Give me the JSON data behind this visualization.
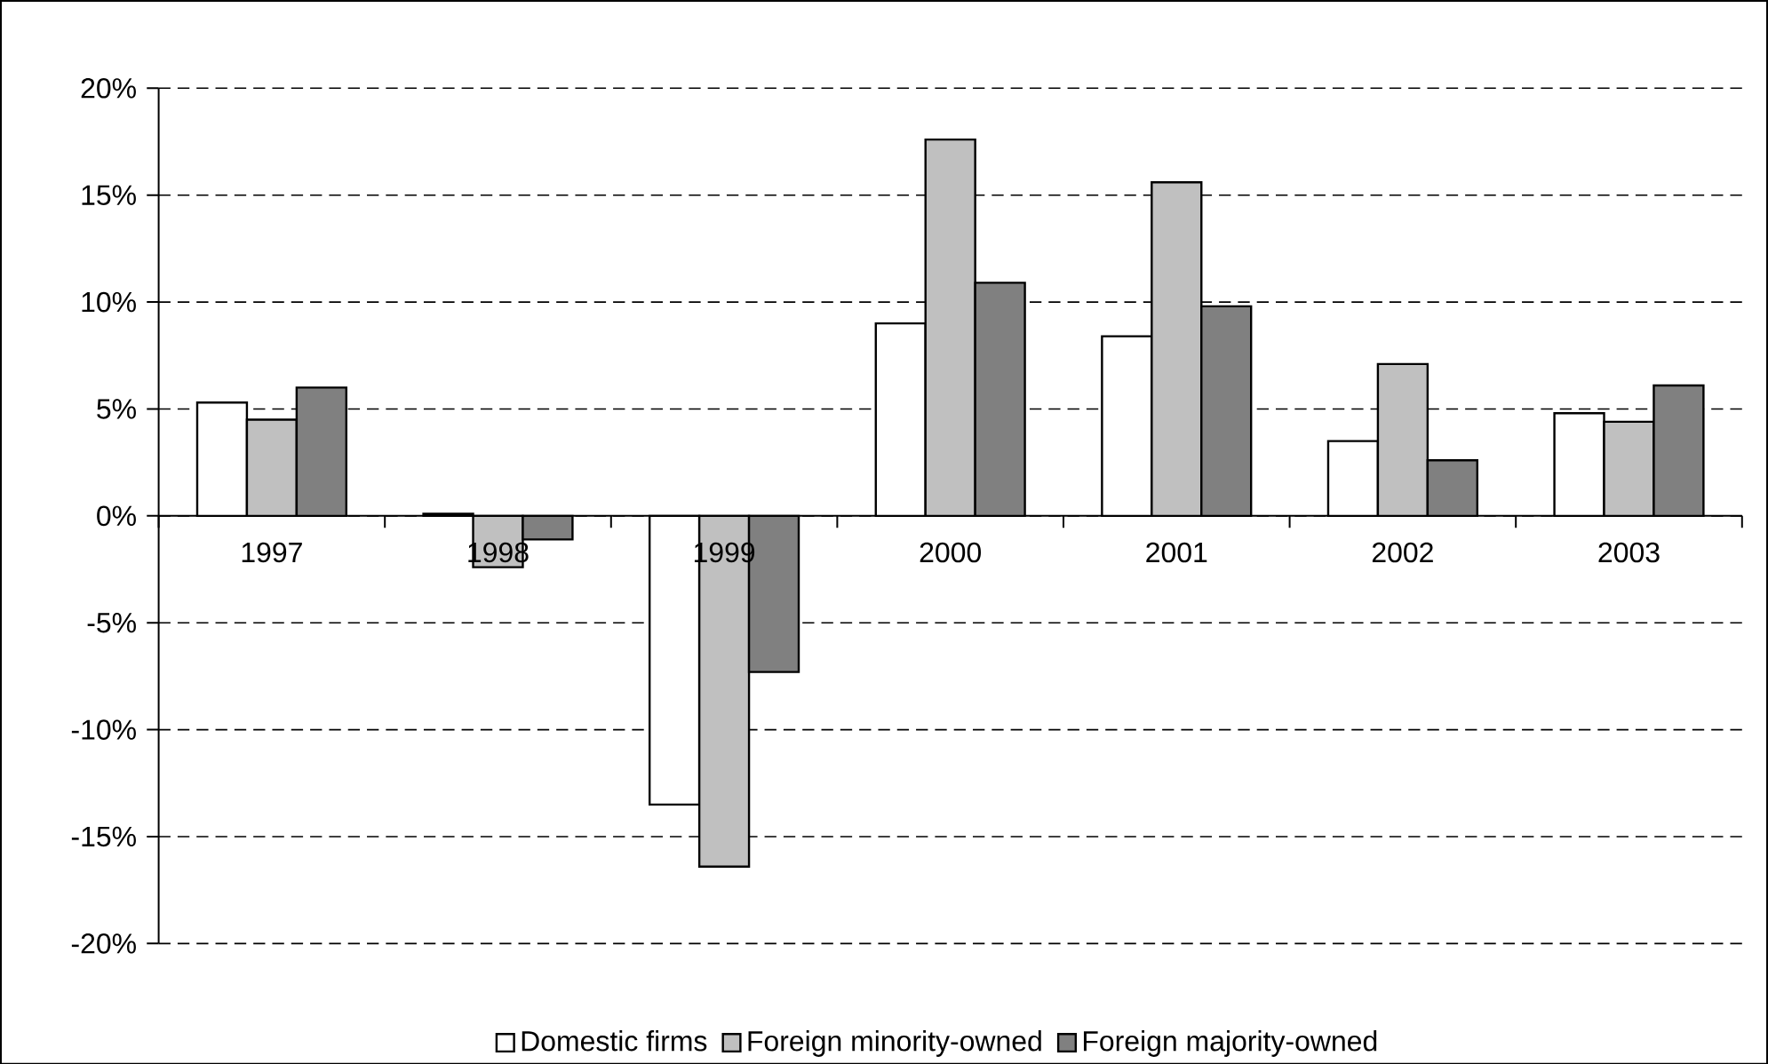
{
  "chart_data": {
    "type": "bar",
    "categories": [
      "1997",
      "1998",
      "1999",
      "2000",
      "2001",
      "2002",
      "2003"
    ],
    "series": [
      {
        "name": "Domestic firms",
        "color": "#ffffff",
        "values": [
          5.3,
          0.1,
          -13.5,
          9.0,
          8.4,
          3.5,
          4.8
        ]
      },
      {
        "name": "Foreign minority-owned",
        "color": "#c0c0c0",
        "values": [
          4.5,
          -2.4,
          -16.4,
          17.6,
          15.6,
          7.1,
          4.4
        ]
      },
      {
        "name": "Foreign majority-owned",
        "color": "#808080",
        "values": [
          6.0,
          -1.1,
          -7.3,
          10.9,
          9.8,
          2.6,
          6.1
        ]
      }
    ],
    "ylim": [
      -20,
      20
    ],
    "yticks": [
      {
        "value": -20,
        "label": "-20%"
      },
      {
        "value": -15,
        "label": "-15%"
      },
      {
        "value": -10,
        "label": "-10%"
      },
      {
        "value": -5,
        "label": "-5%"
      },
      {
        "value": 0,
        "label": "0%"
      },
      {
        "value": 5,
        "label": "5%"
      },
      {
        "value": 10,
        "label": "10%"
      },
      {
        "value": 15,
        "label": "15%"
      },
      {
        "value": 20,
        "label": "20%"
      }
    ],
    "grid": "y",
    "legend": "bottom"
  }
}
